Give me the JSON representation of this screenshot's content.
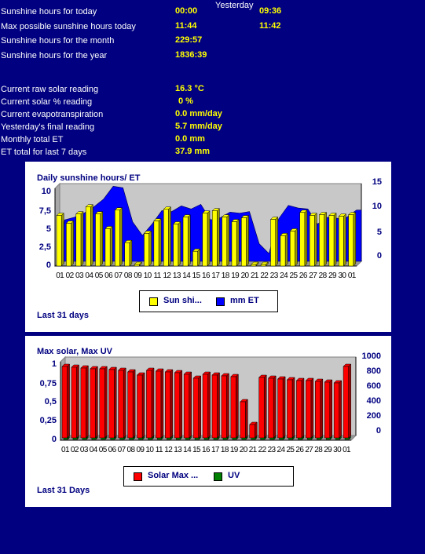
{
  "stats": {
    "yesterday_header": "Yesterday",
    "rows": [
      {
        "label": "Sunshine hours for today",
        "value": "00:00",
        "yesterday": "09:36"
      },
      {
        "label": "Max possible sunshine hours today",
        "value": "11:44",
        "yesterday": "11:42"
      },
      {
        "label": "Sunshine hours for the month",
        "value": "229:57"
      },
      {
        "label": "Sunshine hours for the year",
        "value": "1836:39"
      }
    ],
    "readings": [
      {
        "label": "Current raw solar reading",
        "value": "16.3 °C"
      },
      {
        "label": "Current solar % reading",
        "value": "0 %"
      },
      {
        "label": "Current evapotranspiration",
        "value": "0.0 mm/day"
      },
      {
        "label": "Yesterday's final reading",
        "value": "5.7 mm/day"
      },
      {
        "label": "Monthly total ET",
        "value": "0.0 mm"
      },
      {
        "label": "ET total for last 7 days",
        "value": "37.9 mm"
      }
    ]
  },
  "chart_data": [
    {
      "type": "bar",
      "title": "Daily sunshine hours/ ET",
      "footer": "Last 31 days",
      "categories": [
        "01",
        "02",
        "03",
        "04",
        "05",
        "06",
        "07",
        "08",
        "09",
        "10",
        "11",
        "12",
        "13",
        "14",
        "15",
        "16",
        "17",
        "18",
        "19",
        "20",
        "21",
        "22",
        "23",
        "24",
        "25",
        "26",
        "27",
        "28",
        "29",
        "30",
        "01"
      ],
      "y_ticks_left": [
        "0",
        "2,5",
        "5",
        "7,5",
        "10"
      ],
      "y_ticks_right": [
        "0",
        "5",
        "10",
        "15"
      ],
      "ylim_left": [
        0,
        10
      ],
      "ylim_right": [
        0,
        15
      ],
      "legend": [
        "Sun shi...",
        "mm ET"
      ],
      "colors": {
        "bar": "#ffff00",
        "area": "#0000ff"
      },
      "series": [
        {
          "name": "Sun shi...",
          "axis": "left",
          "values": [
            6.5,
            5.5,
            6.7,
            7.6,
            6.7,
            4.8,
            7.2,
            3,
            0.2,
            4.2,
            5.8,
            7.3,
            5.4,
            6.3,
            1.9,
            6.8,
            7.1,
            6.3,
            5.7,
            6.2,
            0.2,
            0.2,
            6,
            3.9,
            4.5,
            6.9,
            6.5,
            6.6,
            6.5,
            6.4,
            6.6
          ]
        },
        {
          "name": "mm ET",
          "axis": "right",
          "values": [
            8,
            8.5,
            9.3,
            10.5,
            12,
            14.5,
            14.2,
            7.6,
            5,
            7.2,
            9.8,
            9.6,
            10.7,
            10.1,
            11,
            8,
            8.4,
            9.5,
            9.3,
            9.6,
            3.4,
            1.5,
            8.2,
            10.8,
            10.3,
            10.1,
            7.2,
            8.5,
            8.3,
            8.5,
            9.9
          ]
        }
      ]
    },
    {
      "type": "bar",
      "title": "Max solar, Max UV",
      "footer": "Last 31 Days",
      "categories": [
        "01",
        "02",
        "03",
        "04",
        "05",
        "06",
        "07",
        "08",
        "09",
        "10",
        "11",
        "12",
        "13",
        "14",
        "15",
        "16",
        "17",
        "18",
        "19",
        "20",
        "21",
        "22",
        "23",
        "24",
        "25",
        "26",
        "27",
        "28",
        "29",
        "30",
        "01"
      ],
      "y_ticks_left": [
        "0",
        "0,25",
        "0,5",
        "0,75",
        "1"
      ],
      "y_ticks_right": [
        "0",
        "200",
        "400",
        "600",
        "800",
        "1000"
      ],
      "ylim_left": [
        0,
        1
      ],
      "ylim_right": [
        0,
        1000
      ],
      "legend": [
        "Solar Max ...",
        "UV"
      ],
      "colors": {
        "solar": "#ff0000",
        "uv": "#008000"
      },
      "series": [
        {
          "name": "Solar Max ...",
          "axis": "right",
          "values": [
            910,
            900,
            890,
            880,
            880,
            870,
            860,
            840,
            800,
            860,
            850,
            840,
            830,
            810,
            760,
            810,
            800,
            790,
            780,
            460,
            170,
            770,
            760,
            750,
            740,
            730,
            730,
            720,
            710,
            700,
            910
          ]
        },
        {
          "name": "UV",
          "axis": "left",
          "values": [
            0.06,
            0.06,
            0.06,
            0.06,
            0.06,
            0.06,
            0.06,
            0.06,
            0.06,
            0.06,
            0.06,
            0.06,
            0.06,
            0.06,
            0.06,
            0.06,
            0.06,
            0.06,
            0.06,
            0.06,
            0.06,
            0.06,
            0.06,
            0.06,
            0.06,
            0.06,
            0.06,
            0.06,
            0.06,
            0.06,
            0.06
          ]
        }
      ]
    }
  ]
}
